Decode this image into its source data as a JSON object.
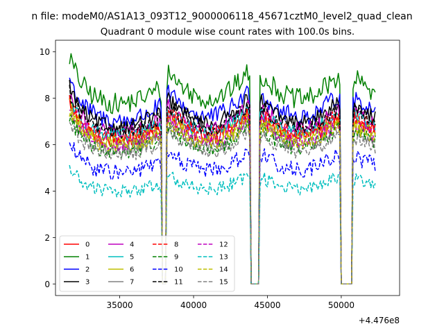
{
  "suptitle": "n file: modeM0/AS1A13_093T12_9000006118_45671cztM0_level2_quad_clean",
  "chart_data": {
    "type": "line",
    "title": "Quadrant 0 module wise count rates with 100.0s bins.",
    "xlabel": "",
    "ylabel": "",
    "x_offset_label": "+4.476e8",
    "xlim": [
      30650,
      53950
    ],
    "ylim": [
      -0.5,
      10.5
    ],
    "x_ticks": [
      35000,
      40000,
      45000,
      50000
    ],
    "x_tick_labels": [
      "35000",
      "40000",
      "45000",
      "50000"
    ],
    "y_ticks": [
      0,
      2,
      4,
      6,
      8,
      10
    ],
    "y_tick_labels": [
      "0",
      "2",
      "4",
      "6",
      "8",
      "10"
    ],
    "legend_position": "lower-left",
    "bin_seconds": 100,
    "time_range": [
      31600,
      52300
    ],
    "gaps": [
      [
        37900,
        38100
      ],
      [
        43900,
        44400
      ],
      [
        50000,
        50700
      ]
    ],
    "series": [
      {
        "name": "0",
        "color": "#ff0000",
        "dash": "solid",
        "level": 6.7,
        "amp": 0.35
      },
      {
        "name": "1",
        "color": "#008000",
        "dash": "solid",
        "level": 8.4,
        "amp": 0.45
      },
      {
        "name": "2",
        "color": "#0000ff",
        "dash": "solid",
        "level": 7.6,
        "amp": 0.4
      },
      {
        "name": "3",
        "color": "#000000",
        "dash": "solid",
        "level": 7.3,
        "amp": 0.35
      },
      {
        "name": "4",
        "color": "#bf00bf",
        "dash": "solid",
        "level": 7.0,
        "amp": 0.35
      },
      {
        "name": "5",
        "color": "#00bfbf",
        "dash": "solid",
        "level": 6.9,
        "amp": 0.3
      },
      {
        "name": "6",
        "color": "#bfbf00",
        "dash": "solid",
        "level": 6.6,
        "amp": 0.3
      },
      {
        "name": "7",
        "color": "#808080",
        "dash": "solid",
        "level": 6.3,
        "amp": 0.3
      },
      {
        "name": "8",
        "color": "#ff0000",
        "dash": "dashed",
        "level": 6.8,
        "amp": 0.35
      },
      {
        "name": "9",
        "color": "#008000",
        "dash": "dashed",
        "level": 6.2,
        "amp": 0.35
      },
      {
        "name": "10",
        "color": "#0000ff",
        "dash": "dashed",
        "level": 5.2,
        "amp": 0.35
      },
      {
        "name": "11",
        "color": "#000000",
        "dash": "dashed",
        "level": 7.1,
        "amp": 0.35
      },
      {
        "name": "12",
        "color": "#bf00bf",
        "dash": "dashed",
        "level": 6.5,
        "amp": 0.3
      },
      {
        "name": "13",
        "color": "#00bfbf",
        "dash": "dashed",
        "level": 4.3,
        "amp": 0.3
      },
      {
        "name": "14",
        "color": "#bfbf00",
        "dash": "dashed",
        "level": 6.4,
        "amp": 0.3
      },
      {
        "name": "15",
        "color": "#808080",
        "dash": "dashed",
        "level": 6.0,
        "amp": 0.3
      }
    ]
  }
}
